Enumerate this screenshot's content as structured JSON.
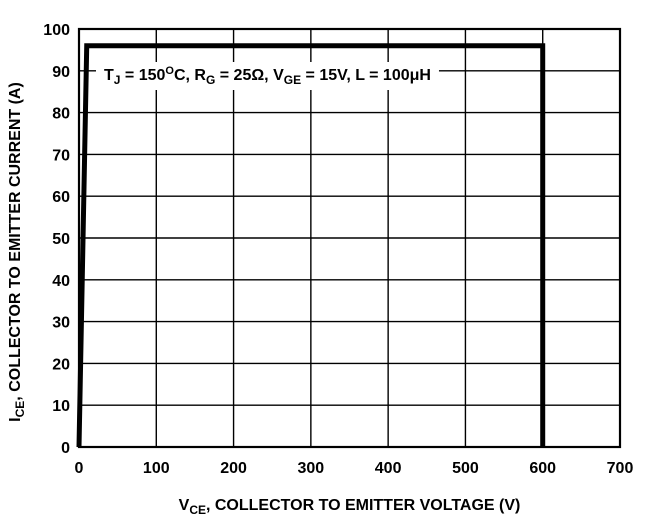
{
  "chart_data": {
    "type": "line",
    "xlabel": {
      "symbol": "V",
      "subscript": "CE",
      "text": ", COLLECTOR TO EMITTER VOLTAGE (V)"
    },
    "ylabel": {
      "symbol": "I",
      "subscript": "CE",
      "text": ", COLLECTOR TO EMITTER CURRENT (A)"
    },
    "xlim": [
      0,
      700
    ],
    "ylim": [
      0,
      100
    ],
    "x_ticks": [
      0,
      100,
      200,
      300,
      400,
      500,
      600,
      700
    ],
    "y_ticks": [
      0,
      10,
      20,
      30,
      40,
      50,
      60,
      70,
      80,
      90,
      100
    ],
    "x_tick_labels": [
      "0",
      "100",
      "200",
      "300",
      "400",
      "500",
      "600",
      "700"
    ],
    "y_tick_labels": [
      "0",
      "10",
      "20",
      "30",
      "40",
      "50",
      "60",
      "70",
      "80",
      "90",
      "100"
    ],
    "grid": true,
    "series": [
      {
        "x": [
          0,
          10,
          600,
          600
        ],
        "y": [
          0,
          96,
          96,
          0
        ],
        "color": "#000000"
      }
    ],
    "annotation": {
      "parts": [
        {
          "t": "T"
        },
        {
          "t": "J",
          "sub": true
        },
        {
          "t": " = 150"
        },
        {
          "t": "O",
          "sup": true
        },
        {
          "t": "C, R"
        },
        {
          "t": "G",
          "sub": true
        },
        {
          "t": " = 25Ω, V"
        },
        {
          "t": "GE",
          "sub": true
        },
        {
          "t": " = 15V, L = 100μH"
        }
      ]
    }
  }
}
